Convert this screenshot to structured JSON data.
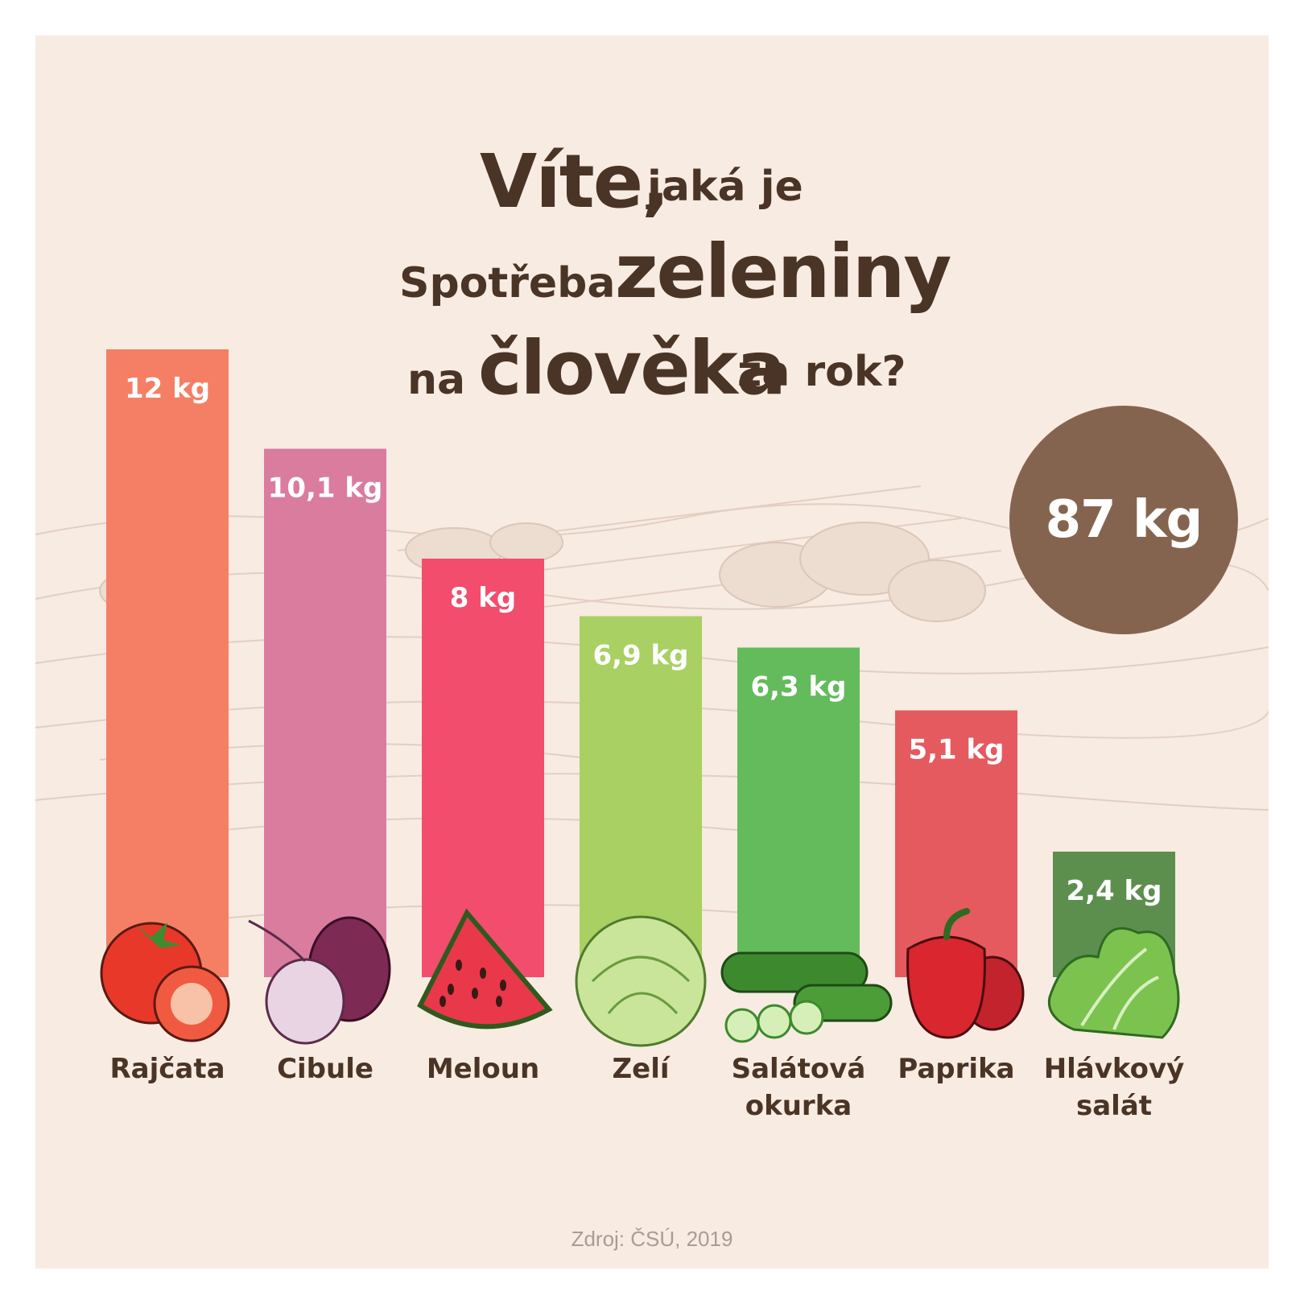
{
  "title": {
    "line1_big": "Víte,",
    "line1_small": "jaká je",
    "line2_small": "Spotřeba",
    "line2_big": "zeleniny",
    "line3_small_a": "na",
    "line3_big": "člověka",
    "line3_small_b": "za rok?"
  },
  "total": "87 kg",
  "source": "Zdroj: ČSÚ, 2019",
  "colors": {
    "title": "#4a3426",
    "badge": "#85644f",
    "background": "#f8ebe2"
  },
  "chart_data": {
    "type": "bar",
    "categories": [
      "Rajčata",
      "Cibule",
      "Meloun",
      "Zelí",
      "Salátová okurka",
      "Paprika",
      "Hlávkový salát"
    ],
    "values": [
      12,
      10.1,
      8,
      6.9,
      6.3,
      5.1,
      2.4
    ],
    "value_labels": [
      "12 kg",
      "10,1 kg",
      "8 kg",
      "6,9 kg",
      "6,3 kg",
      "5,1 kg",
      "2,4 kg"
    ],
    "category_lines": [
      [
        "Rajčata"
      ],
      [
        "Cibule"
      ],
      [
        "Meloun"
      ],
      [
        "Zelí"
      ],
      [
        "Salátová",
        "okurka"
      ],
      [
        "Paprika"
      ],
      [
        "Hlávkový",
        "salát"
      ]
    ],
    "bar_colors": [
      "#f47f65",
      "#d97c9e",
      "#f24d6d",
      "#a8d062",
      "#63bb5c",
      "#e45a5e",
      "#5c8f4d"
    ],
    "icons": [
      "tomato-icon",
      "onion-icon",
      "watermelon-icon",
      "cabbage-icon",
      "cucumber-icon",
      "pepper-icon",
      "lettuce-icon"
    ],
    "unit": "kg",
    "ylim": [
      0,
      12
    ]
  }
}
